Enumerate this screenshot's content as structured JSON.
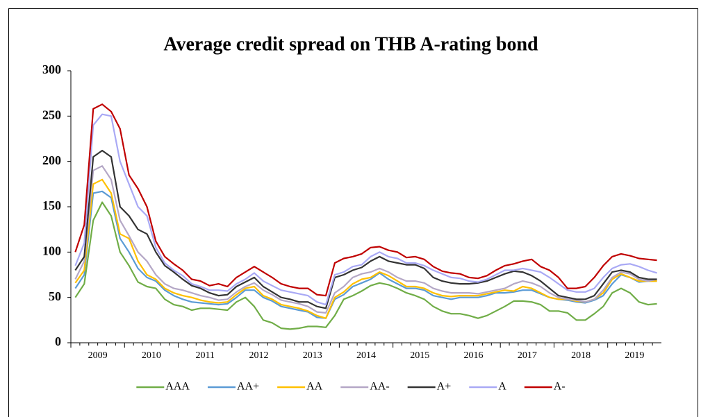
{
  "chart_data": {
    "type": "line",
    "title": "Average credit spread on THB A-rating bond",
    "categories": [
      "2009",
      null,
      null,
      null,
      null,
      null,
      "2010",
      null,
      null,
      null,
      null,
      null,
      "2011",
      null,
      null,
      null,
      null,
      null,
      "2012",
      null,
      null,
      null,
      null,
      null,
      "2013",
      null,
      null,
      null,
      null,
      null,
      "2014",
      null,
      null,
      null,
      null,
      null,
      "2015",
      null,
      null,
      null,
      null,
      null,
      "2016",
      null,
      null,
      null,
      null,
      null,
      "2017",
      null,
      null,
      null,
      null,
      null,
      "2018",
      null,
      null,
      null,
      null,
      null,
      "2019",
      null,
      null,
      null,
      null,
      null
    ],
    "ylim": [
      0,
      300
    ],
    "yticks": [
      0,
      50,
      100,
      150,
      200,
      250,
      300
    ],
    "grid": false,
    "legend": "bottom",
    "series": [
      {
        "name": "AAA",
        "color": "#70ad47",
        "values": [
          50,
          65,
          135,
          155,
          140,
          100,
          85,
          67,
          62,
          60,
          48,
          42,
          40,
          36,
          38,
          38,
          37,
          36,
          45,
          50,
          40,
          25,
          22,
          16,
          15,
          16,
          18,
          18,
          17,
          30,
          48,
          52,
          57,
          63,
          66,
          64,
          60,
          55,
          52,
          48,
          40,
          35,
          32,
          32,
          30,
          27,
          30,
          35,
          40,
          46,
          46,
          45,
          42,
          35,
          35,
          33,
          25,
          25,
          32,
          40,
          55,
          60,
          55,
          45,
          42,
          43
        ]
      },
      {
        "name": "AA+",
        "color": "#5b9bd5",
        "values": [
          60,
          75,
          165,
          167,
          160,
          115,
          100,
          82,
          72,
          68,
          58,
          52,
          48,
          45,
          44,
          43,
          42,
          43,
          50,
          58,
          58,
          50,
          46,
          40,
          38,
          36,
          34,
          28,
          27,
          48,
          53,
          62,
          66,
          70,
          77,
          70,
          65,
          60,
          60,
          58,
          52,
          50,
          48,
          50,
          50,
          50,
          52,
          55,
          55,
          56,
          58,
          58,
          54,
          50,
          48,
          47,
          45,
          44,
          47,
          52,
          65,
          75,
          72,
          67,
          68,
          68
        ]
      },
      {
        "name": "AA",
        "color": "#ffc000",
        "values": [
          66,
          80,
          175,
          180,
          165,
          120,
          115,
          90,
          75,
          70,
          60,
          55,
          52,
          50,
          47,
          45,
          44,
          45,
          53,
          60,
          62,
          52,
          48,
          42,
          40,
          38,
          35,
          30,
          27,
          50,
          56,
          65,
          70,
          72,
          78,
          74,
          68,
          62,
          62,
          60,
          55,
          52,
          51,
          52,
          52,
          52,
          54,
          56,
          58,
          57,
          62,
          60,
          55,
          50,
          48,
          48,
          46,
          45,
          48,
          55,
          70,
          76,
          72,
          68,
          68,
          68
        ]
      },
      {
        "name": "AA-",
        "color": "#b4a7c6",
        "values": [
          70,
          90,
          190,
          195,
          180,
          135,
          118,
          100,
          90,
          75,
          65,
          60,
          58,
          55,
          52,
          50,
          47,
          48,
          56,
          62,
          66,
          58,
          53,
          47,
          45,
          43,
          40,
          34,
          33,
          55,
          62,
          72,
          76,
          78,
          82,
          78,
          72,
          68,
          68,
          66,
          60,
          57,
          55,
          55,
          55,
          54,
          56,
          58,
          60,
          65,
          68,
          66,
          62,
          55,
          50,
          48,
          47,
          45,
          48,
          58,
          72,
          78,
          76,
          70,
          68,
          70
        ]
      },
      {
        "name": "A+",
        "color": "#333333",
        "values": [
          80,
          95,
          205,
          212,
          205,
          150,
          140,
          125,
          120,
          100,
          85,
          78,
          70,
          63,
          60,
          55,
          52,
          53,
          62,
          67,
          72,
          62,
          56,
          50,
          48,
          45,
          45,
          40,
          38,
          72,
          75,
          80,
          83,
          90,
          95,
          90,
          88,
          86,
          86,
          82,
          72,
          68,
          66,
          65,
          65,
          66,
          68,
          72,
          76,
          79,
          78,
          74,
          68,
          60,
          52,
          50,
          48,
          48,
          52,
          65,
          78,
          80,
          78,
          72,
          70,
          70
        ]
      },
      {
        "name": "A",
        "color": "#a9a9f5",
        "values": [
          85,
          110,
          240,
          252,
          250,
          200,
          175,
          150,
          140,
          105,
          88,
          80,
          74,
          65,
          62,
          58,
          58,
          57,
          65,
          70,
          77,
          68,
          63,
          58,
          56,
          54,
          52,
          45,
          42,
          75,
          78,
          84,
          86,
          95,
          100,
          95,
          93,
          88,
          88,
          85,
          80,
          76,
          72,
          71,
          68,
          67,
          70,
          75,
          80,
          80,
          82,
          80,
          78,
          72,
          65,
          58,
          56,
          56,
          60,
          72,
          82,
          86,
          87,
          84,
          80,
          77
        ]
      },
      {
        "name": "A-",
        "color": "#c00000",
        "values": [
          100,
          130,
          258,
          263,
          255,
          236,
          185,
          170,
          150,
          112,
          95,
          87,
          80,
          70,
          68,
          63,
          65,
          62,
          72,
          78,
          84,
          78,
          72,
          65,
          62,
          60,
          60,
          53,
          52,
          88,
          93,
          95,
          98,
          105,
          106,
          102,
          100,
          94,
          95,
          92,
          84,
          79,
          77,
          76,
          72,
          71,
          74,
          80,
          85,
          87,
          90,
          92,
          84,
          80,
          72,
          60,
          60,
          62,
          72,
          85,
          95,
          98,
          96,
          93,
          92,
          91
        ]
      }
    ]
  }
}
